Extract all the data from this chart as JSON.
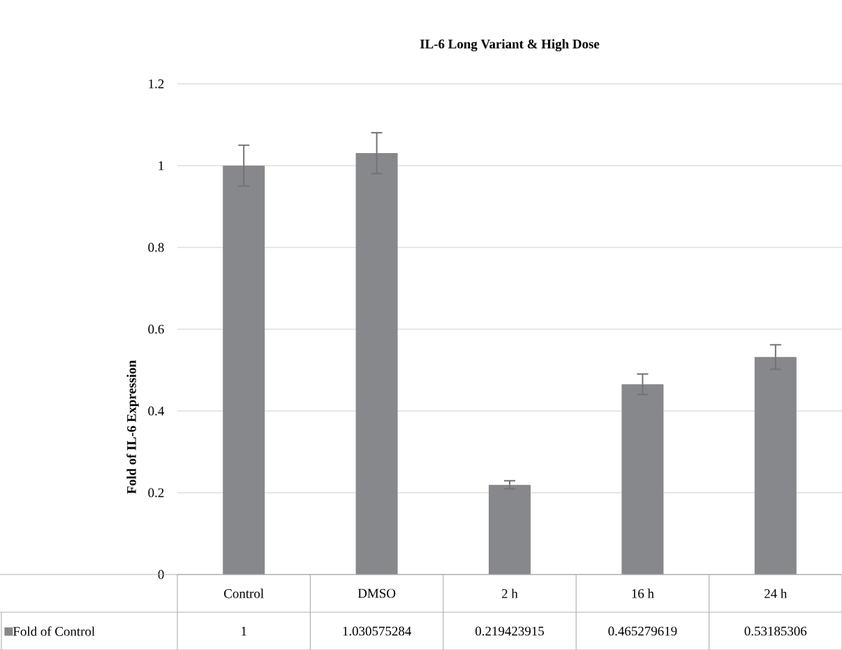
{
  "chart_data": {
    "type": "bar",
    "title": "IL-6 Long Variant & High Dose",
    "ylabel": "Fold of IL-6 Expression",
    "categories": [
      "Control",
      "DMSO",
      "2 h",
      "16 h",
      "24 h"
    ],
    "series": [
      {
        "name": "Fold of Control",
        "color": "#87888c",
        "values": [
          1,
          1.030575284,
          0.219423915,
          0.465279619,
          0.53185306
        ],
        "errors": [
          0.05,
          0.05,
          0.01,
          0.025,
          0.03
        ],
        "value_labels": [
          "1",
          "1.030575284",
          "0.219423915",
          "0.465279619",
          "0.53185306"
        ]
      }
    ],
    "ylim": [
      0,
      1.2
    ],
    "yticks": [
      0,
      0.2,
      0.4,
      0.6,
      0.8,
      1,
      1.2
    ],
    "grid": "y"
  }
}
